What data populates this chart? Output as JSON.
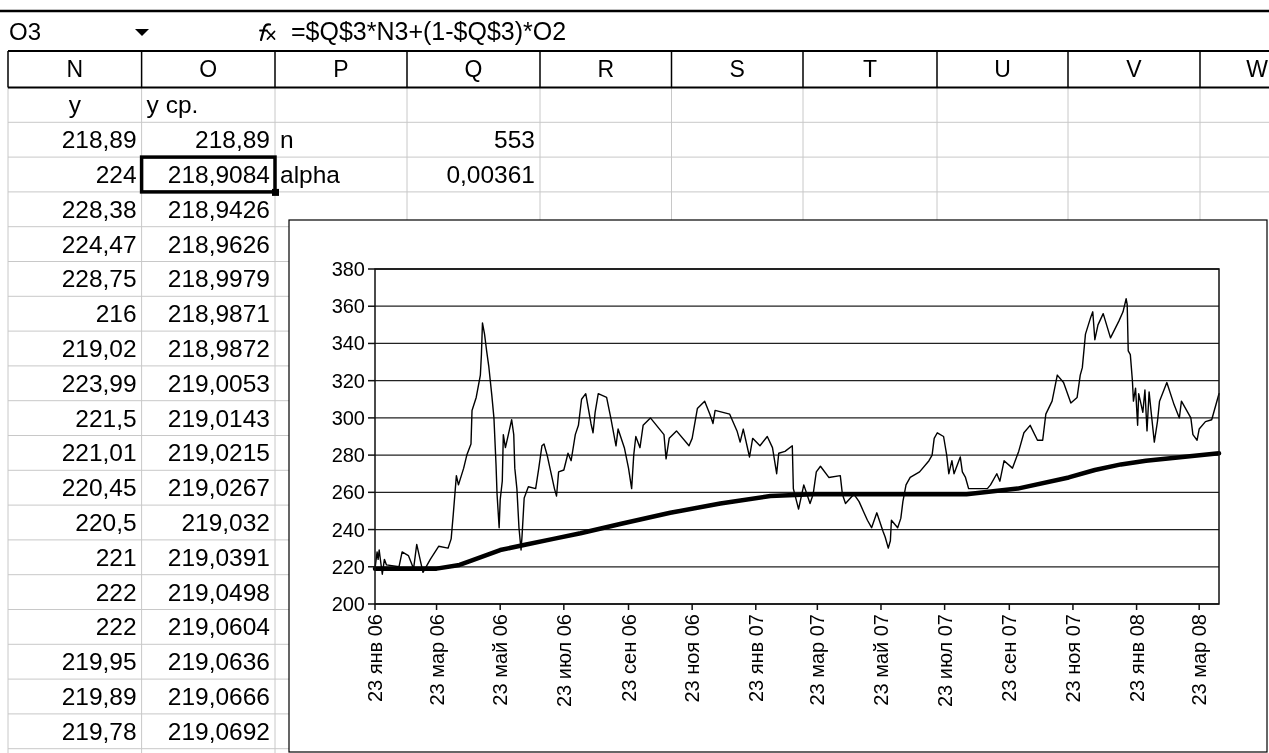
{
  "chart_data": {
    "type": "line",
    "xlim": [
      "2006-01-23",
      "2008-04-11"
    ],
    "xticks": [
      {
        "value": "2006-01-23",
        "label": "23 янв 06"
      },
      {
        "value": "2006-03-23",
        "label": "23 мар 06"
      },
      {
        "value": "2006-05-23",
        "label": "23 май 06"
      },
      {
        "value": "2006-07-23",
        "label": "23 июл 06"
      },
      {
        "value": "2006-09-23",
        "label": "23 сен 06"
      },
      {
        "value": "2006-11-23",
        "label": "23 ноя 06"
      },
      {
        "value": "2007-01-23",
        "label": "23 янв 07"
      },
      {
        "value": "2007-03-23",
        "label": "23 мар 07"
      },
      {
        "value": "2007-05-23",
        "label": "23 май 07"
      },
      {
        "value": "2007-07-23",
        "label": "23 июл 07"
      },
      {
        "value": "2007-09-23",
        "label": "23 сен 07"
      },
      {
        "value": "2007-11-23",
        "label": "23 ноя 07"
      },
      {
        "value": "2008-01-23",
        "label": "23 янв 08"
      },
      {
        "value": "2008-03-23",
        "label": "23 мар 08"
      }
    ],
    "ylim": [
      200,
      380
    ],
    "yticks": [
      200,
      220,
      240,
      260,
      280,
      300,
      320,
      340,
      360,
      380
    ],
    "grid": "y",
    "series": [
      {
        "color": "#000000",
        "x": [
          "2006-01-23",
          "2006-01-25",
          "2006-01-26",
          "2006-01-27",
          "2006-01-30",
          "2006-02-01",
          "2006-02-03",
          "2006-02-15",
          "2006-02-18",
          "2006-02-24",
          "2006-03-01",
          "2006-03-04",
          "2006-03-10",
          "2006-03-17",
          "2006-03-25",
          "2006-04-03",
          "2006-04-06",
          "2006-04-08",
          "2006-04-11",
          "2006-04-13",
          "2006-04-18",
          "2006-04-21",
          "2006-04-25",
          "2006-04-26",
          "2006-04-30",
          "2006-05-04",
          "2006-05-05",
          "2006-05-06",
          "2006-05-08",
          "2006-05-10",
          "2006-05-12",
          "2006-05-15",
          "2006-05-17",
          "2006-05-19",
          "2006-05-20",
          "2006-05-22",
          "2006-05-23",
          "2006-05-25",
          "2006-05-26",
          "2006-05-28",
          "2006-06-01",
          "2006-06-03",
          "2006-06-05",
          "2006-06-06",
          "2006-06-08",
          "2006-06-10",
          "2006-06-12",
          "2006-06-13",
          "2006-06-15",
          "2006-06-19",
          "2006-06-26",
          "2006-06-29",
          "2006-07-02",
          "2006-07-04",
          "2006-07-07",
          "2006-07-14",
          "2006-07-16",
          "2006-07-18",
          "2006-07-23",
          "2006-07-27",
          "2006-07-30",
          "2006-08-03",
          "2006-08-06",
          "2006-08-09",
          "2006-08-13",
          "2006-08-18",
          "2006-08-20",
          "2006-08-22",
          "2006-08-25",
          "2006-09-02",
          "2006-09-06",
          "2006-09-11",
          "2006-09-13",
          "2006-09-19",
          "2006-09-23",
          "2006-09-26",
          "2006-09-28",
          "2006-09-30",
          "2006-10-04",
          "2006-10-07",
          "2006-10-14",
          "2006-10-27",
          "2006-10-29",
          "2006-11-01",
          "2006-11-08",
          "2006-11-20",
          "2006-11-23",
          "2006-11-28",
          "2006-12-05",
          "2006-12-10",
          "2006-12-13",
          "2006-12-15",
          "2006-12-29",
          "2007-01-05",
          "2007-01-08",
          "2007-01-11",
          "2007-01-17",
          "2007-01-20",
          "2007-01-27",
          "2007-02-03",
          "2007-02-08",
          "2007-02-12",
          "2007-02-14",
          "2007-02-20",
          "2007-02-27",
          "2007-02-28",
          "2007-03-05",
          "2007-03-10",
          "2007-03-16",
          "2007-03-19",
          "2007-03-22",
          "2007-03-26",
          "2007-04-03",
          "2007-04-14",
          "2007-04-16",
          "2007-04-19",
          "2007-04-27",
          "2007-05-02",
          "2007-05-06",
          "2007-05-10",
          "2007-05-14",
          "2007-05-19",
          "2007-05-25",
          "2007-05-27",
          "2007-05-30",
          "2007-06-01",
          "2007-06-02",
          "2007-06-08",
          "2007-06-11",
          "2007-06-13",
          "2007-06-16",
          "2007-06-20",
          "2007-06-29",
          "2007-07-08",
          "2007-07-11",
          "2007-07-13",
          "2007-07-16",
          "2007-07-22",
          "2007-07-25",
          "2007-07-27",
          "2007-07-30",
          "2007-08-01",
          "2007-08-07",
          "2007-08-09",
          "2007-08-12",
          "2007-08-15",
          "2007-09-02",
          "2007-09-05",
          "2007-09-11",
          "2007-09-14",
          "2007-09-18",
          "2007-09-26",
          "2007-10-02",
          "2007-10-07",
          "2007-10-13",
          "2007-10-20",
          "2007-10-25",
          "2007-10-28",
          "2007-11-03",
          "2007-11-08",
          "2007-11-14",
          "2007-11-21",
          "2007-11-27",
          "2007-11-30",
          "2007-12-02",
          "2007-12-05",
          "2007-12-10",
          "2007-12-12",
          "2007-12-14",
          "2007-12-17",
          "2007-12-22",
          "2007-12-29",
          "2008-01-06",
          "2008-01-10",
          "2008-01-13",
          "2008-01-14",
          "2008-01-15",
          "2008-01-17",
          "2008-01-19",
          "2008-01-20",
          "2008-01-22",
          "2008-01-24",
          "2008-01-25",
          "2008-01-29",
          "2008-01-31",
          "2008-02-02",
          "2008-02-04",
          "2008-02-06",
          "2008-02-09",
          "2008-02-12",
          "2008-02-14",
          "2008-02-21",
          "2008-02-28",
          "2008-03-04",
          "2008-03-06",
          "2008-03-15",
          "2008-03-17",
          "2008-03-21",
          "2008-03-23",
          "2008-03-29",
          "2008-04-04",
          "2008-04-11"
        ],
        "values": [
          219,
          228,
          224,
          229,
          216,
          224,
          221,
          220,
          228,
          226,
          219,
          232,
          217,
          224,
          231,
          230,
          235,
          248,
          269,
          264,
          273,
          280,
          286,
          304,
          311,
          323,
          334,
          351,
          345,
          336,
          328,
          312,
          300,
          275,
          259,
          241,
          256,
          266,
          291,
          284,
          294,
          299,
          291,
          273,
          262,
          241,
          229,
          237,
          257,
          263,
          262,
          273,
          285,
          286,
          280,
          262,
          258,
          271,
          272,
          281,
          277,
          291,
          296,
          310,
          313,
          297,
          292,
          303,
          313,
          311,
          300,
          285,
          294,
          284,
          273,
          262,
          280,
          290,
          284,
          296,
          300,
          291,
          278,
          289,
          293,
          285,
          289,
          305,
          309,
          302,
          297,
          304,
          302,
          293,
          287,
          294,
          279,
          289,
          285,
          290,
          284,
          270,
          281,
          282,
          285,
          262,
          251,
          264,
          254,
          259,
          271,
          274,
          268,
          269,
          259,
          254,
          259,
          255,
          250,
          245,
          241,
          249,
          239,
          236,
          230,
          234,
          245,
          241,
          246,
          255,
          264,
          268,
          271,
          277,
          280,
          289,
          292,
          290,
          280,
          270,
          277,
          270,
          279,
          271,
          268,
          262,
          262,
          264,
          270,
          266,
          277,
          273,
          282,
          292,
          296,
          288,
          288,
          302,
          309,
          323,
          319,
          308,
          311,
          323,
          327,
          345,
          354,
          357,
          342,
          350,
          356,
          343,
          352,
          357,
          364,
          361,
          336,
          334,
          320,
          309,
          316,
          296,
          313,
          303,
          315,
          293,
          314,
          303,
          287,
          298,
          309,
          319,
          307,
          300,
          309,
          300,
          291,
          288,
          294,
          298,
          299,
          313
        ]
      },
      {
        "color": "#000000",
        "x": [
          "2006-01-23",
          "2006-03-23",
          "2006-04-14",
          "2006-04-24",
          "2006-05-23",
          "2006-06-17",
          "2006-07-13",
          "2006-08-08",
          "2006-09-15",
          "2006-11-02",
          "2006-12-20",
          "2007-02-06",
          "2007-03-19",
          "2007-05-08",
          "2007-06-27",
          "2007-08-13",
          "2007-10-01",
          "2007-11-19",
          "2007-12-14",
          "2008-01-08",
          "2008-02-01",
          "2008-03-07",
          "2008-04-11"
        ],
        "values": [
          219,
          219,
          221,
          223,
          229,
          232,
          235,
          238,
          243,
          249,
          254,
          258,
          259,
          259,
          259,
          259,
          262,
          268,
          272,
          275,
          277,
          279,
          281
        ]
      }
    ],
    "annotations": [
      "O3",
      "=$Q$3*N3+(1-$Q$3)*O2",
      "N",
      "O",
      "P",
      "Q",
      "R",
      "S",
      "T",
      "U",
      "V",
      "W",
      "y",
      "y ср.",
      "218,89",
      "218,89",
      "n",
      "553",
      "224",
      "218,9084",
      "alpha",
      "0,00361",
      "228,38",
      "218,9426",
      "224,47",
      "218,9626",
      "228,75",
      "218,9979",
      "216",
      "218,9871",
      "219,02",
      "218,9872",
      "223,99",
      "219,0053",
      "221,5",
      "219,0143",
      "221,01",
      "219,0215",
      "220,45",
      "219,0267",
      "220,5",
      "219,032",
      "221",
      "219,0391",
      "222",
      "219,0498",
      "222",
      "219,0604",
      "219,95",
      "219,0636",
      "219,89",
      "219,0666",
      "219,78",
      "219,0692"
    ]
  }
}
